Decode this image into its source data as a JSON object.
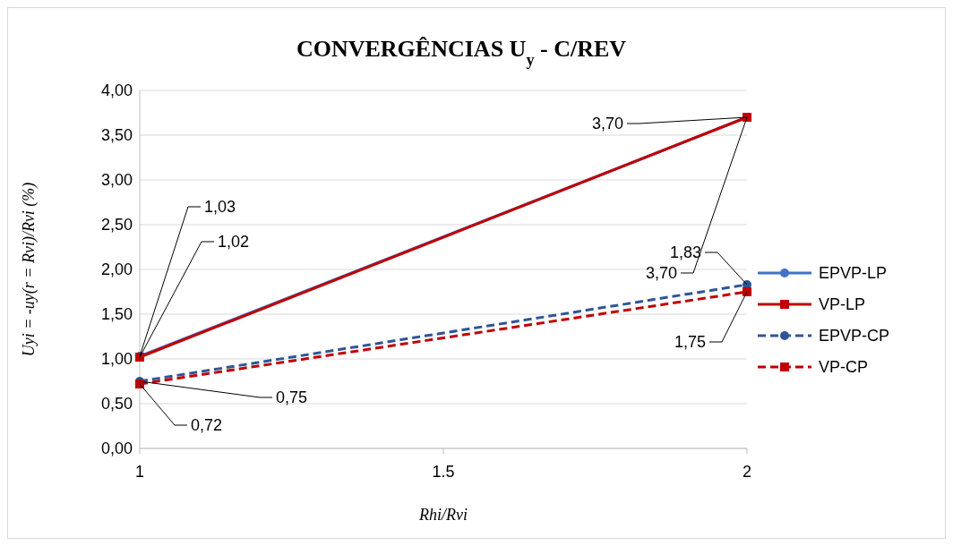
{
  "chart_data": {
    "type": "line",
    "title": "CONVERGÊNCIAS U$_{y}$  - C/REV",
    "xlabel": "Rhi/Rvi",
    "ylabel": "Uyi = -uy(r = Rvi)/Rvi (%)",
    "x": [
      1,
      2
    ],
    "xlim": [
      1,
      2
    ],
    "xticks": [
      1,
      1.5,
      2
    ],
    "ylim": [
      0,
      4
    ],
    "yticks": [
      {
        "value": 0,
        "label": "0,00"
      },
      {
        "value": 0.5,
        "label": "0,50"
      },
      {
        "value": 1,
        "label": "1,00"
      },
      {
        "value": 1.5,
        "label": "1,50"
      },
      {
        "value": 2,
        "label": "2,00"
      },
      {
        "value": 2.5,
        "label": "2,50"
      },
      {
        "value": 3,
        "label": "3,00"
      },
      {
        "value": 3.5,
        "label": "3,50"
      },
      {
        "value": 4,
        "label": "4,00"
      }
    ],
    "grid": "y",
    "legend": "right",
    "series": [
      {
        "name": "EPVP-LP",
        "color": "#4472c4",
        "values": [
          1.03,
          3.7
        ],
        "value_labels": [
          "1,03",
          "3,70"
        ],
        "marker": "circle",
        "line_style": "solid"
      },
      {
        "name": "VP-LP",
        "color": "#c00000",
        "values": [
          1.02,
          3.7
        ],
        "value_labels": [
          "1,02",
          "3,70"
        ],
        "marker": "square",
        "line_style": "solid"
      },
      {
        "name": "EPVP-CP",
        "color": "#2f5597",
        "values": [
          0.75,
          1.83
        ],
        "value_labels": [
          "0,75",
          "1,83"
        ],
        "marker": "circle",
        "line_style": "dashed"
      },
      {
        "name": "VP-CP",
        "color": "#c00000",
        "values": [
          0.72,
          1.75
        ],
        "value_labels": [
          "0,72",
          "1,75"
        ],
        "marker": "square",
        "line_style": "dashed"
      }
    ]
  }
}
